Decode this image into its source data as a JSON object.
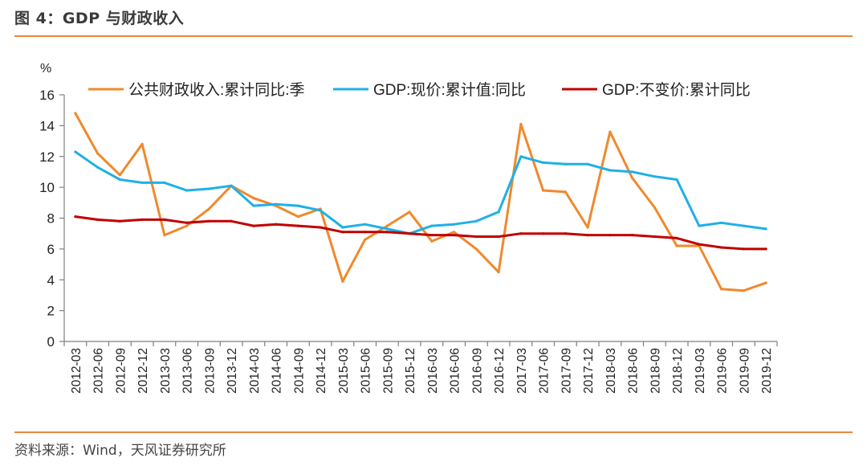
{
  "figure": {
    "title": "图 4：GDP 与财政收入",
    "source": "资料来源：Wind，天风证券研究所",
    "accent_color": "#e6883a"
  },
  "chart_data": {
    "type": "line",
    "ylabel": "%",
    "ylim": [
      0,
      16
    ],
    "yticks": [
      0,
      2,
      4,
      6,
      8,
      10,
      12,
      14,
      16
    ],
    "grid": false,
    "legend_position": "top",
    "categories": [
      "2012-03",
      "2012-06",
      "2012-09",
      "2012-12",
      "2013-03",
      "2013-06",
      "2013-09",
      "2013-12",
      "2014-03",
      "2014-06",
      "2014-09",
      "2014-12",
      "2015-03",
      "2015-06",
      "2015-09",
      "2015-12",
      "2016-03",
      "2016-06",
      "2016-09",
      "2016-12",
      "2017-03",
      "2017-06",
      "2017-09",
      "2017-12",
      "2018-03",
      "2018-06",
      "2018-09",
      "2018-12",
      "2019-03",
      "2019-06",
      "2019-09",
      "2019-12"
    ],
    "series": [
      {
        "name": "公共财政收入:累计同比:季",
        "color": "#f0892c",
        "values": [
          14.8,
          12.2,
          10.8,
          12.8,
          6.9,
          7.5,
          8.6,
          10.1,
          9.3,
          8.8,
          8.1,
          8.6,
          3.9,
          6.6,
          7.5,
          8.4,
          6.5,
          7.1,
          6.0,
          4.5,
          14.1,
          9.8,
          9.7,
          7.4,
          13.6,
          10.6,
          8.7,
          6.2,
          6.2,
          3.4,
          3.3,
          3.8
        ]
      },
      {
        "name": "GDP:现价:累计值:同比",
        "color": "#1fb0e6",
        "values": [
          12.3,
          11.3,
          10.5,
          10.3,
          10.3,
          9.8,
          9.9,
          10.1,
          8.8,
          8.9,
          8.8,
          8.5,
          7.4,
          7.6,
          7.3,
          7.0,
          7.5,
          7.6,
          7.8,
          8.4,
          12.0,
          11.6,
          11.5,
          11.5,
          11.1,
          11.0,
          10.7,
          10.5,
          7.5,
          7.7,
          7.5,
          7.3
        ]
      },
      {
        "name": "GDP:不变价:累计同比",
        "color": "#c00000",
        "values": [
          8.1,
          7.9,
          7.8,
          7.9,
          7.9,
          7.7,
          7.8,
          7.8,
          7.5,
          7.6,
          7.5,
          7.4,
          7.1,
          7.1,
          7.1,
          7.0,
          6.9,
          6.9,
          6.8,
          6.8,
          7.0,
          7.0,
          7.0,
          6.9,
          6.9,
          6.9,
          6.8,
          6.7,
          6.3,
          6.1,
          6.0,
          6.0
        ]
      }
    ]
  }
}
